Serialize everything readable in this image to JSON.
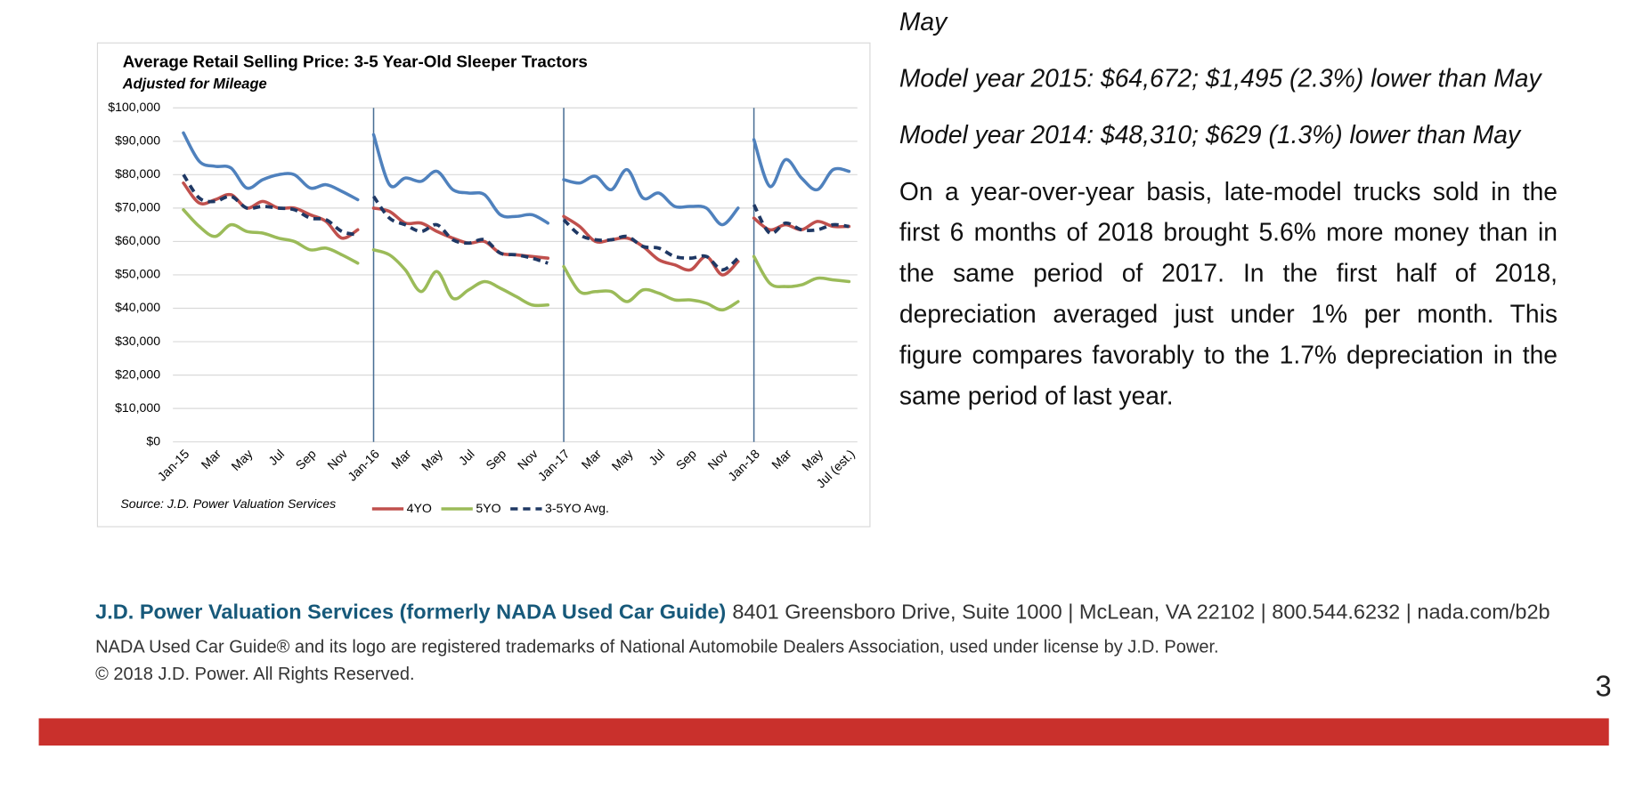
{
  "chart_data": {
    "type": "line",
    "title": "Average Retail Selling Price: 3-5 Year-Old Sleeper Tractors",
    "subtitle": "Adjusted for Mileage",
    "source": "Source: J.D. Power Valuation Services",
    "categories": [
      "Jan-15",
      null,
      "Mar",
      null,
      "May",
      null,
      "Jul",
      null,
      "Sep",
      null,
      "Nov",
      null,
      "Jan-16",
      null,
      "Mar",
      null,
      "May",
      null,
      "Jul",
      null,
      "Sep",
      null,
      "Nov",
      null,
      "Jan-17",
      null,
      "Mar",
      null,
      "May",
      null,
      "Jul",
      null,
      "Sep",
      null,
      "Nov",
      null,
      "Jan-18",
      null,
      "Mar",
      null,
      "May",
      null,
      "Jul (est.)"
    ],
    "series": [
      {
        "color": "#4f81bd",
        "values": [
          92500,
          84000,
          82500,
          82000,
          76000,
          78500,
          80000,
          80000,
          76000,
          77000,
          75000,
          72500,
          92000,
          77000,
          79000,
          78000,
          81000,
          75500,
          74500,
          74000,
          68000,
          67500,
          68000,
          65500,
          78500,
          77500,
          79500,
          75500,
          81500,
          73000,
          74500,
          70500,
          70500,
          70000,
          65000,
          70000,
          90500,
          76500,
          84500,
          79000,
          75500,
          81500,
          81000
        ]
      },
      {
        "name": "4YO",
        "color": "#c0504d",
        "values": [
          77500,
          71500,
          72500,
          74000,
          70000,
          72000,
          70000,
          70000,
          68000,
          66000,
          61000,
          63500,
          70000,
          69000,
          65500,
          65500,
          63000,
          61000,
          59500,
          60000,
          56500,
          56000,
          55500,
          55000,
          67500,
          64500,
          60000,
          60500,
          61000,
          58500,
          54500,
          53000,
          51500,
          55500,
          50000,
          54000,
          67000,
          63500,
          65000,
          63500,
          66000,
          64500,
          64500
        ]
      },
      {
        "name": "5YO",
        "color": "#9bbb59",
        "values": [
          69500,
          64500,
          61500,
          65000,
          63000,
          62500,
          61000,
          60000,
          57500,
          58000,
          56000,
          53500,
          57500,
          56000,
          51500,
          45000,
          51000,
          43000,
          45500,
          48000,
          46000,
          43500,
          41000,
          41000,
          52500,
          45000,
          45000,
          45000,
          42000,
          45500,
          44500,
          42500,
          42500,
          41500,
          39500,
          42000,
          55500,
          47500,
          46500,
          47000,
          49000,
          48500,
          48000
        ]
      },
      {
        "name": "3-5YO Avg.",
        "color": "#1f3864",
        "dashed": true,
        "values": [
          80000,
          73000,
          72000,
          73500,
          70000,
          70500,
          70000,
          69500,
          67000,
          66500,
          63000,
          62000,
          73500,
          67000,
          65000,
          63000,
          65000,
          60500,
          59500,
          60500,
          56500,
          56000,
          55000,
          53500,
          66500,
          62000,
          60500,
          60500,
          61500,
          58500,
          58000,
          55500,
          55000,
          55500,
          51500,
          55000,
          71000,
          62500,
          65500,
          63500,
          63500,
          65000,
          64500
        ]
      }
    ],
    "ylim": [
      0,
      100000
    ],
    "yticks": [
      {
        "value": 0,
        "label": "$0"
      },
      {
        "value": 10000,
        "label": "$10,000"
      },
      {
        "value": 20000,
        "label": "$20,000"
      },
      {
        "value": 30000,
        "label": "$30,000"
      },
      {
        "value": 40000,
        "label": "$40,000"
      },
      {
        "value": 50000,
        "label": "$50,000"
      },
      {
        "value": 60000,
        "label": "$60,000"
      },
      {
        "value": 70000,
        "label": "$70,000"
      },
      {
        "value": 80000,
        "label": "$80,000"
      },
      {
        "value": 90000,
        "label": "$90,000"
      },
      {
        "value": 100000,
        "label": "$100,000"
      }
    ],
    "grid": true
  },
  "text": {
    "fragment": "May",
    "paragraphs": [
      "Model year 2015: $64,672; $1,495 (2.3%) lower than May",
      "Model year 2014: $48,310; $629 (1.3%) lower than May",
      "On a year-over-year basis, late-model trucks sold in the first 6 months of 2018 brought 5.6% more money than in the same period of 2017. In the first half of 2018, depreciation averaged just under 1% per month. This figure compares favorably to the 1.7% depreciation in the same period of last year."
    ]
  },
  "footer": {
    "company": "J.D. Power Valuation Services (formerly NADA Used Car Guide)",
    "address": "8401 Greensboro Drive, Suite 1000 | McLean, VA 22102 | 800.544.6232 | nada.com/b2b",
    "trademark": "NADA Used Car Guide® and its logo are registered trademarks of National Automobile Dealers Association, used under license by J.D. Power.",
    "copyright": "© 2018 J.D. Power. All Rights Reserved."
  },
  "page_number": "3"
}
